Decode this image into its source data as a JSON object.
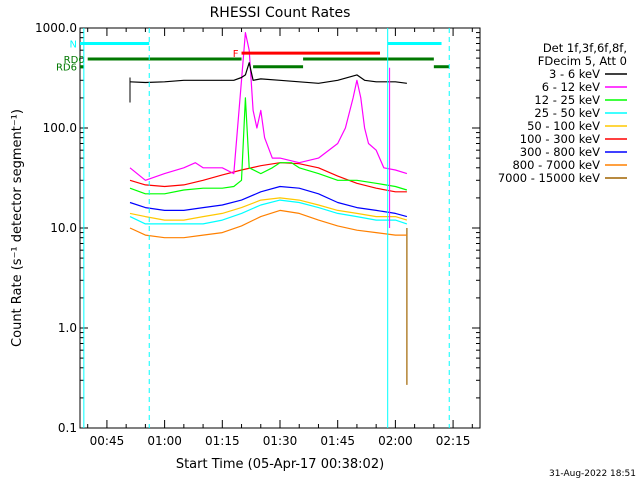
{
  "chart_data": {
    "type": "line",
    "title": "RHESSI Count Rates",
    "xlabel": "Start Time (05-Apr-17 00:38:02)",
    "ylabel": "Count Rate (s⁻¹ detector segment⁻¹)",
    "yscale": "log",
    "xlim": [
      "00:38",
      "02:22"
    ],
    "ylim": [
      0.1,
      1000.0
    ],
    "x_ticks": [
      "00:45",
      "01:00",
      "01:15",
      "01:30",
      "01:45",
      "02:00",
      "02:15"
    ],
    "y_ticks": [
      "0.1",
      "1.0",
      "10.0",
      "100.0",
      "1000.0"
    ],
    "legend_position": "right",
    "legend_header": [
      "Det 1f,3f,6f,8f,",
      "FDecim 5, Att 0"
    ],
    "footer_date": "31-Aug-2022 18:51",
    "series": [
      {
        "name": "3 - 6 keV",
        "color": "#000000",
        "points": [
          [
            "00:51",
            290
          ],
          [
            "00:55",
            285
          ],
          [
            "01:00",
            290
          ],
          [
            "01:05",
            300
          ],
          [
            "01:10",
            300
          ],
          [
            "01:15",
            300
          ],
          [
            "01:18",
            300
          ],
          [
            "01:20",
            320
          ],
          [
            "01:21",
            340
          ],
          [
            "01:22",
            450
          ],
          [
            "01:23",
            300
          ],
          [
            "01:25",
            310
          ],
          [
            "01:30",
            300
          ],
          [
            "01:35",
            290
          ],
          [
            "01:40",
            280
          ],
          [
            "01:45",
            300
          ],
          [
            "01:50",
            340
          ],
          [
            "01:52",
            300
          ],
          [
            "01:55",
            290
          ],
          [
            "02:00",
            290
          ],
          [
            "02:03",
            280
          ]
        ]
      },
      {
        "name": "6 - 12 keV",
        "color": "#ff00ff",
        "points": [
          [
            "00:51",
            40
          ],
          [
            "00:55",
            30
          ],
          [
            "01:00",
            35
          ],
          [
            "01:05",
            40
          ],
          [
            "01:08",
            45
          ],
          [
            "01:10",
            40
          ],
          [
            "01:15",
            40
          ],
          [
            "01:18",
            35
          ],
          [
            "01:20",
            300
          ],
          [
            "01:21",
            900
          ],
          [
            "01:22",
            600
          ],
          [
            "01:23",
            150
          ],
          [
            "01:24",
            100
          ],
          [
            "01:25",
            150
          ],
          [
            "01:26",
            80
          ],
          [
            "01:28",
            50
          ],
          [
            "01:30",
            50
          ],
          [
            "01:35",
            45
          ],
          [
            "01:40",
            50
          ],
          [
            "01:45",
            70
          ],
          [
            "01:47",
            100
          ],
          [
            "01:49",
            200
          ],
          [
            "01:50",
            300
          ],
          [
            "01:51",
            200
          ],
          [
            "01:52",
            100
          ],
          [
            "01:53",
            70
          ],
          [
            "01:55",
            60
          ],
          [
            "01:57",
            40
          ],
          [
            "02:00",
            38
          ],
          [
            "02:03",
            35
          ]
        ]
      },
      {
        "name": "12 - 25 keV",
        "color": "#00ff00",
        "points": [
          [
            "00:51",
            25
          ],
          [
            "00:55",
            22
          ],
          [
            "01:00",
            22
          ],
          [
            "01:05",
            24
          ],
          [
            "01:10",
            25
          ],
          [
            "01:15",
            25
          ],
          [
            "01:18",
            26
          ],
          [
            "01:20",
            30
          ],
          [
            "01:21",
            200
          ],
          [
            "01:22",
            40
          ],
          [
            "01:25",
            35
          ],
          [
            "01:28",
            40
          ],
          [
            "01:30",
            45
          ],
          [
            "01:33",
            45
          ],
          [
            "01:35",
            40
          ],
          [
            "01:40",
            35
          ],
          [
            "01:45",
            30
          ],
          [
            "01:50",
            30
          ],
          [
            "01:55",
            28
          ],
          [
            "02:00",
            26
          ],
          [
            "02:03",
            24
          ]
        ]
      },
      {
        "name": "25 - 50 keV",
        "color": "#00ffff",
        "points": [
          [
            "00:51",
            13
          ],
          [
            "00:55",
            11
          ],
          [
            "01:00",
            11
          ],
          [
            "01:05",
            11
          ],
          [
            "01:10",
            11
          ],
          [
            "01:15",
            12
          ],
          [
            "01:20",
            14
          ],
          [
            "01:25",
            17
          ],
          [
            "01:30",
            19
          ],
          [
            "01:35",
            18
          ],
          [
            "01:40",
            16
          ],
          [
            "01:45",
            14
          ],
          [
            "01:50",
            13
          ],
          [
            "01:55",
            12
          ],
          [
            "02:00",
            12
          ],
          [
            "02:03",
            11
          ]
        ]
      },
      {
        "name": "50 - 100 keV",
        "color": "#ffc800",
        "points": [
          [
            "00:51",
            14
          ],
          [
            "00:55",
            13
          ],
          [
            "01:00",
            12
          ],
          [
            "01:05",
            12
          ],
          [
            "01:10",
            13
          ],
          [
            "01:15",
            14
          ],
          [
            "01:20",
            16
          ],
          [
            "01:25",
            19
          ],
          [
            "01:30",
            20
          ],
          [
            "01:35",
            19
          ],
          [
            "01:40",
            17
          ],
          [
            "01:45",
            15
          ],
          [
            "01:50",
            14
          ],
          [
            "01:55",
            13
          ],
          [
            "02:00",
            13
          ],
          [
            "02:03",
            12
          ]
        ]
      },
      {
        "name": "100 - 300 keV",
        "color": "#ff0000",
        "points": [
          [
            "00:51",
            30
          ],
          [
            "00:55",
            27
          ],
          [
            "01:00",
            26
          ],
          [
            "01:05",
            27
          ],
          [
            "01:10",
            30
          ],
          [
            "01:15",
            34
          ],
          [
            "01:20",
            38
          ],
          [
            "01:25",
            42
          ],
          [
            "01:30",
            45
          ],
          [
            "01:35",
            44
          ],
          [
            "01:40",
            40
          ],
          [
            "01:45",
            33
          ],
          [
            "01:50",
            28
          ],
          [
            "01:55",
            25
          ],
          [
            "02:00",
            23
          ],
          [
            "02:03",
            23
          ]
        ]
      },
      {
        "name": "300 - 800 keV",
        "color": "#0000ff",
        "points": [
          [
            "00:51",
            18
          ],
          [
            "00:55",
            16
          ],
          [
            "01:00",
            15
          ],
          [
            "01:05",
            15
          ],
          [
            "01:10",
            16
          ],
          [
            "01:15",
            17
          ],
          [
            "01:20",
            19
          ],
          [
            "01:25",
            23
          ],
          [
            "01:30",
            26
          ],
          [
            "01:35",
            25
          ],
          [
            "01:40",
            22
          ],
          [
            "01:45",
            18
          ],
          [
            "01:50",
            16
          ],
          [
            "01:55",
            15
          ],
          [
            "02:00",
            14
          ],
          [
            "02:03",
            13
          ]
        ]
      },
      {
        "name": "800 - 7000 keV",
        "color": "#ff8000",
        "points": [
          [
            "00:51",
            10
          ],
          [
            "00:55",
            8.5
          ],
          [
            "01:00",
            8
          ],
          [
            "01:05",
            8
          ],
          [
            "01:10",
            8.5
          ],
          [
            "01:15",
            9
          ],
          [
            "01:20",
            10.5
          ],
          [
            "01:25",
            13
          ],
          [
            "01:30",
            15
          ],
          [
            "01:35",
            14
          ],
          [
            "01:40",
            12
          ],
          [
            "01:45",
            10.5
          ],
          [
            "01:50",
            9.5
          ],
          [
            "01:55",
            9
          ],
          [
            "02:00",
            8.5
          ],
          [
            "02:03",
            8.5
          ]
        ]
      },
      {
        "name": "7000 - 15000 keV",
        "color": "#a06400",
        "points": [
          [
            "02:03",
            10
          ],
          [
            "02:03",
            0.27
          ]
        ]
      }
    ],
    "annotations": [
      {
        "label": "N",
        "color": "#00ffff",
        "type": "bar",
        "start": "00:38",
        "end": "00:56",
        "level": 700
      },
      {
        "label": "",
        "color": "#00ffff",
        "type": "bar",
        "start": "01:58",
        "end": "02:12",
        "level": 700
      },
      {
        "label": "RD0",
        "color": "#007800",
        "type": "bar",
        "start": "00:40",
        "end": "01:20",
        "level": 490
      },
      {
        "label": "",
        "color": "#007800",
        "type": "bar",
        "start": "01:36",
        "end": "02:10",
        "level": 490
      },
      {
        "label": "RD6",
        "color": "#007800",
        "type": "bar",
        "start": "00:38",
        "end": "00:39",
        "level": 410
      },
      {
        "label": "",
        "color": "#007800",
        "type": "bar",
        "start": "01:23",
        "end": "01:36",
        "level": 410
      },
      {
        "label": "",
        "color": "#007800",
        "type": "bar",
        "start": "02:10",
        "end": "02:14",
        "level": 410
      },
      {
        "label": "F",
        "color": "#ff0000",
        "type": "bar",
        "start": "01:20",
        "end": "01:56",
        "level": 560
      },
      {
        "label": "",
        "color": "#00ffff",
        "type": "vline",
        "at": "00:39",
        "style": "solid"
      },
      {
        "label": "",
        "color": "#00ffff",
        "type": "vline",
        "at": "00:56",
        "style": "dashed"
      },
      {
        "label": "",
        "color": "#00ffff",
        "type": "vline",
        "at": "01:58",
        "style": "solid"
      },
      {
        "label": "",
        "color": "#00ffff",
        "type": "vline",
        "at": "02:14",
        "style": "dashed"
      },
      {
        "label": "",
        "color": "#ff00ff",
        "type": "vline",
        "at": "01:58.5",
        "style": "solid"
      },
      {
        "label": "",
        "color": "#000000",
        "type": "vline",
        "at": "00:51",
        "style": "solid"
      }
    ]
  }
}
